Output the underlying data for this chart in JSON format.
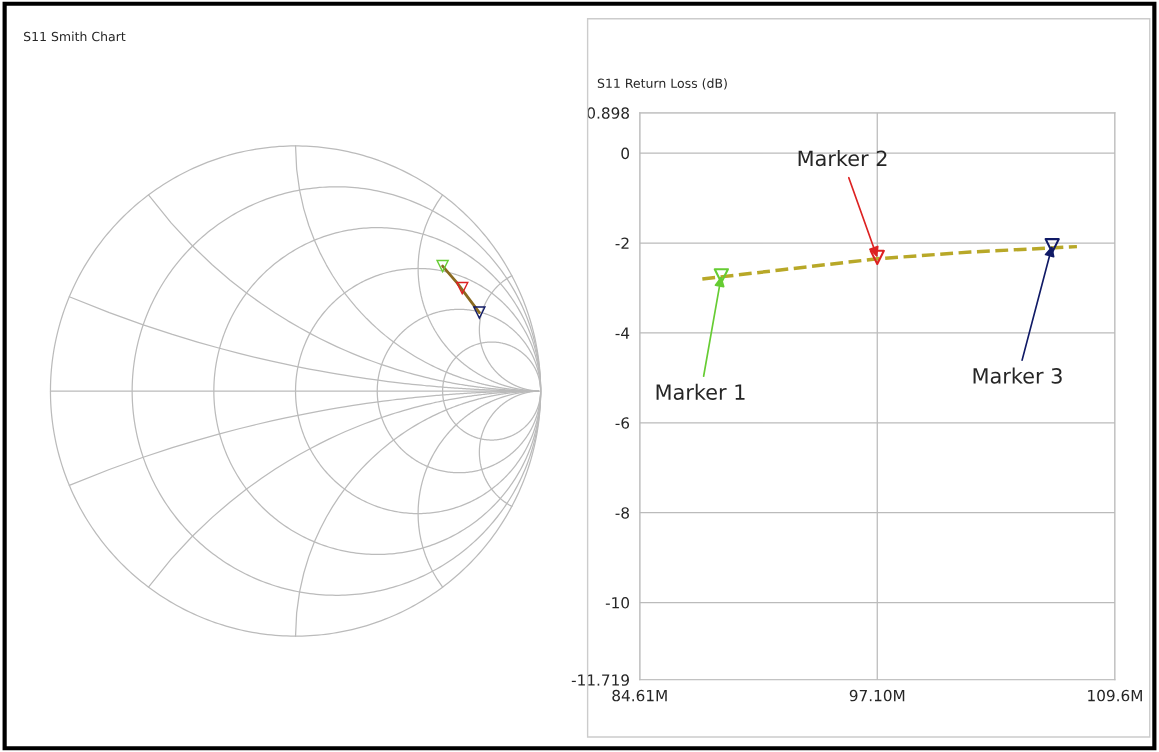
{
  "chart_data": [
    {
      "type": "other",
      "title": "S11 Smith Chart"
    },
    {
      "type": "line",
      "title": "S11 Return Loss (dB)",
      "grid": true,
      "xlim": [
        84.61,
        109.6
      ],
      "xticks": [
        {
          "value": 84.61,
          "label": "84.61M"
        },
        {
          "value": 97.1,
          "label": "97.10M"
        },
        {
          "value": 109.6,
          "label": "109.6M"
        }
      ],
      "ylim": [
        -11.719,
        0.898
      ],
      "yticks": [
        -11.719,
        -10,
        -8,
        -6,
        -4,
        -2,
        0,
        0.898
      ],
      "series": [
        {
          "type": "line",
          "color": "#b8a828",
          "line_style": "dashed",
          "marker": "none",
          "x": [
            87.9,
            92.0,
            97.1,
            102.0,
            107.6
          ],
          "values": [
            -2.8,
            -2.6,
            -2.35,
            -2.2,
            -2.08
          ]
        },
        {
          "type": "scatter",
          "color": "#66cc33",
          "marker": "triangle",
          "x": [
            88.9
          ],
          "values": [
            -2.73
          ]
        },
        {
          "type": "scatter",
          "color": "#dd2222",
          "marker": "triangle",
          "x": [
            97.1
          ],
          "values": [
            -2.32
          ]
        },
        {
          "type": "scatter",
          "color": "#101a66",
          "marker": "triangle",
          "x": [
            106.3
          ],
          "values": [
            -2.06
          ]
        }
      ],
      "annotations": [
        {
          "text": "Marker 1",
          "x": 88.9,
          "y": -2.73
        },
        {
          "text": "Marker 2",
          "x": 97.1,
          "y": -2.32
        },
        {
          "text": "Marker 3",
          "x": 106.3,
          "y": -2.06
        }
      ]
    }
  ]
}
